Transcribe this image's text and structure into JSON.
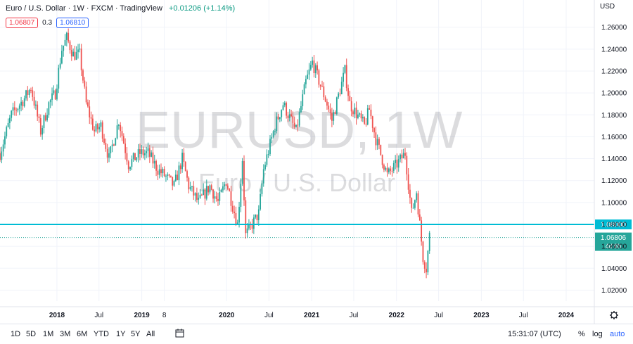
{
  "header": {
    "symbol_line": "Euro / U.S. Dollar · 1W · FXCM · TradingView",
    "change": "+0.01206 (+1.14%)",
    "bid": "1.06807",
    "spread": "0.3",
    "ask": "1.06810"
  },
  "watermark": {
    "symbol": "EURUSD, 1W",
    "name": "Euro / U.S. Dollar"
  },
  "axis": {
    "currency": "USD",
    "settings_icon": "gear-icon"
  },
  "toolbar": {
    "timeframes": [
      "1D",
      "5D",
      "1M",
      "3M",
      "6M",
      "YTD",
      "1Y",
      "5Y",
      "All"
    ],
    "compare_icon": "calendar-range-icon",
    "time": "15:31:07 (UTC)",
    "percent": "%",
    "log": "log",
    "auto": "auto"
  },
  "colors": {
    "up": "#26a69a",
    "down": "#ef5350",
    "line": "#00bcd4",
    "price_tag": "#26a69a"
  },
  "chart_data": {
    "type": "candlestick",
    "y_ticks": [
      "1.26000",
      "1.24000",
      "1.22000",
      "1.20000",
      "1.18000",
      "1.16000",
      "1.14000",
      "1.12000",
      "1.10000",
      "1.08000",
      "1.06000",
      "1.04000",
      "1.02000"
    ],
    "ylim": [
      1.01,
      1.272
    ],
    "x_ticks": [
      "2018",
      "Jul",
      "2019",
      "8",
      "2020",
      "Jul",
      "2021",
      "Jul",
      "2022",
      "Jul",
      "2023",
      "Jul",
      "2024"
    ],
    "x_tick_dates": [
      "2018-01-01",
      "2018-07-01",
      "2019-01-01",
      "2019-04-08",
      "2020-01-01",
      "2020-07-01",
      "2021-01-01",
      "2021-07-01",
      "2022-01-01",
      "2022-07-01",
      "2023-01-01",
      "2023-07-01",
      "2024-01-01"
    ],
    "xlim": [
      "2017-05-01",
      "2024-05-01"
    ],
    "horizontal_line": {
      "value": 1.08,
      "label": "1.08000"
    },
    "last_price": {
      "value": 1.06806,
      "label": "1.06806",
      "countdown": "4d 6h"
    },
    "path_points": [
      [
        "2017-05-01",
        1.145
      ],
      [
        "2017-06-19",
        1.18
      ],
      [
        "2017-08-14",
        1.195
      ],
      [
        "2017-09-11",
        1.205
      ],
      [
        "2017-10-23",
        1.165
      ],
      [
        "2017-11-27",
        1.19
      ],
      [
        "2017-12-25",
        1.2
      ],
      [
        "2018-01-22",
        1.24
      ],
      [
        "2018-02-12",
        1.25
      ],
      [
        "2018-03-12",
        1.235
      ],
      [
        "2018-04-09",
        1.235
      ],
      [
        "2018-05-07",
        1.19
      ],
      [
        "2018-06-11",
        1.165
      ],
      [
        "2018-07-09",
        1.17
      ],
      [
        "2018-08-13",
        1.14
      ],
      [
        "2018-09-24",
        1.175
      ],
      [
        "2018-11-05",
        1.135
      ],
      [
        "2018-12-24",
        1.145
      ],
      [
        "2019-01-28",
        1.145
      ],
      [
        "2019-03-11",
        1.13
      ],
      [
        "2019-04-08",
        1.125
      ],
      [
        "2019-05-20",
        1.115
      ],
      [
        "2019-06-24",
        1.14
      ],
      [
        "2019-07-22",
        1.115
      ],
      [
        "2019-09-02",
        1.1
      ],
      [
        "2019-10-21",
        1.115
      ],
      [
        "2019-11-25",
        1.1
      ],
      [
        "2019-12-30",
        1.12
      ],
      [
        "2020-02-17",
        1.08
      ],
      [
        "2020-03-09",
        1.14
      ],
      [
        "2020-03-23",
        1.07
      ],
      [
        "2020-05-18",
        1.09
      ],
      [
        "2020-06-08",
        1.13
      ],
      [
        "2020-07-27",
        1.17
      ],
      [
        "2020-08-31",
        1.19
      ],
      [
        "2020-10-26",
        1.165
      ],
      [
        "2020-12-07",
        1.21
      ],
      [
        "2021-01-04",
        1.228
      ],
      [
        "2021-03-08",
        1.19
      ],
      [
        "2021-03-29",
        1.175
      ],
      [
        "2021-05-24",
        1.22
      ],
      [
        "2021-06-14",
        1.19
      ],
      [
        "2021-08-16",
        1.17
      ],
      [
        "2021-09-06",
        1.185
      ],
      [
        "2021-10-04",
        1.158
      ],
      [
        "2021-11-22",
        1.125
      ],
      [
        "2022-01-03",
        1.135
      ],
      [
        "2022-02-07",
        1.145
      ],
      [
        "2022-03-07",
        1.09
      ],
      [
        "2022-03-28",
        1.11
      ],
      [
        "2022-04-25",
        1.05
      ],
      [
        "2022-05-09",
        1.04
      ],
      [
        "2022-05-23",
        1.07
      ]
    ]
  }
}
